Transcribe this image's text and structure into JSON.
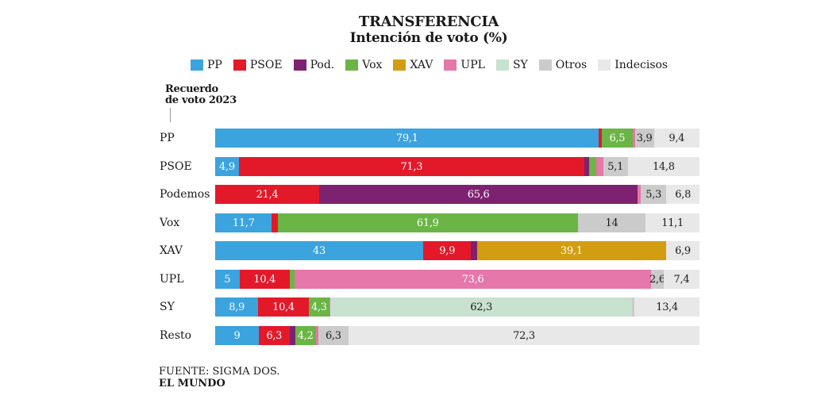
{
  "header": {
    "title": "TRANSFERENCIA",
    "subtitle": "Intención  de voto (%)"
  },
  "legend": [
    {
      "label": "PP",
      "color": "#3ba3de"
    },
    {
      "label": "PSOE",
      "color": "#e3192a"
    },
    {
      "label": "Pod.",
      "color": "#7d2270"
    },
    {
      "label": "Vox",
      "color": "#6ab545"
    },
    {
      "label": "XAV",
      "color": "#d39d12"
    },
    {
      "label": "UPL",
      "color": "#e577aa"
    },
    {
      "label": "SY",
      "color": "#c7e2cf"
    },
    {
      "label": "Otros",
      "color": "#cbcbcb"
    },
    {
      "label": "Indecisos",
      "color": "#e8e8e8"
    }
  ],
  "recall_label_line1": "Recuerdo",
  "recall_label_line2": "de voto 2023",
  "footer": {
    "source": "FUENTE: SIGMA DOS.",
    "brand": "EL MUNDO"
  },
  "chart_data": {
    "type": "bar",
    "stacked": true,
    "orientation": "horizontal",
    "title": "TRANSFERENCIA",
    "subtitle": "Intención  de voto (%)",
    "categories": [
      "PP",
      "PSOE",
      "Podemos",
      "Vox",
      "XAV",
      "UPL",
      "SY",
      "Resto"
    ],
    "xlim": [
      0,
      100
    ],
    "legend_position": "top",
    "series": [
      {
        "name": "PP",
        "values": [
          79.1,
          4.9,
          0,
          11.7,
          43,
          5,
          8.9,
          9
        ]
      },
      {
        "name": "PSOE",
        "values": [
          0.5,
          71.3,
          21.4,
          1.2,
          9.9,
          10.4,
          10.4,
          6.3
        ]
      },
      {
        "name": "Pod.",
        "values": [
          0,
          1.0,
          65.6,
          0,
          1.2,
          0,
          0,
          1.2
        ]
      },
      {
        "name": "Vox",
        "values": [
          6.5,
          1.5,
          0,
          61.9,
          0,
          1.0,
          4.3,
          4.2
        ]
      },
      {
        "name": "XAV",
        "values": [
          0,
          0,
          0,
          0,
          39.1,
          0,
          0,
          0
        ]
      },
      {
        "name": "UPL",
        "values": [
          0.4,
          1.4,
          0.6,
          0,
          0,
          73.6,
          0.2,
          0.5
        ]
      },
      {
        "name": "SY",
        "values": [
          0,
          0,
          0,
          0,
          0,
          0,
          62.3,
          0
        ]
      },
      {
        "name": "Otros",
        "values": [
          3.9,
          5.1,
          5.3,
          14,
          0,
          2.6,
          0.5,
          6.3
        ]
      },
      {
        "name": "Indecisos",
        "values": [
          9.4,
          14.8,
          6.8,
          11.1,
          6.9,
          7.4,
          13.4,
          72.3
        ]
      }
    ],
    "data_labels": [
      [
        {
          "s": 0,
          "t": "79,1"
        },
        {
          "s": 3,
          "t": "6,5"
        },
        {
          "s": 7,
          "t": "3,9"
        },
        {
          "s": 8,
          "t": "9,4"
        }
      ],
      [
        {
          "s": 0,
          "t": "4,9"
        },
        {
          "s": 1,
          "t": "71,3"
        },
        {
          "s": 7,
          "t": "5,1"
        },
        {
          "s": 8,
          "t": "14,8"
        }
      ],
      [
        {
          "s": 1,
          "t": "21,4"
        },
        {
          "s": 2,
          "t": "65,6"
        },
        {
          "s": 7,
          "t": "5,3"
        },
        {
          "s": 8,
          "t": "6,8"
        }
      ],
      [
        {
          "s": 0,
          "t": "11,7"
        },
        {
          "s": 3,
          "t": "61,9"
        },
        {
          "s": 7,
          "t": "14"
        },
        {
          "s": 8,
          "t": "11,1"
        }
      ],
      [
        {
          "s": 0,
          "t": "43"
        },
        {
          "s": 1,
          "t": "9,9"
        },
        {
          "s": 4,
          "t": "39,1"
        },
        {
          "s": 8,
          "t": "6,9"
        }
      ],
      [
        {
          "s": 0,
          "t": "5"
        },
        {
          "s": 1,
          "t": "10,4"
        },
        {
          "s": 5,
          "t": "73,6"
        },
        {
          "s": 7,
          "t": "2,6"
        },
        {
          "s": 8,
          "t": "7,4"
        }
      ],
      [
        {
          "s": 0,
          "t": "8,9"
        },
        {
          "s": 1,
          "t": "10,4"
        },
        {
          "s": 3,
          "t": "4,3"
        },
        {
          "s": 6,
          "t": "62,3"
        },
        {
          "s": 8,
          "t": "13,4"
        }
      ],
      [
        {
          "s": 0,
          "t": "9"
        },
        {
          "s": 1,
          "t": "6,3"
        },
        {
          "s": 3,
          "t": "4,2"
        },
        {
          "s": 7,
          "t": "6,3"
        },
        {
          "s": 8,
          "t": "72,3"
        }
      ]
    ]
  }
}
